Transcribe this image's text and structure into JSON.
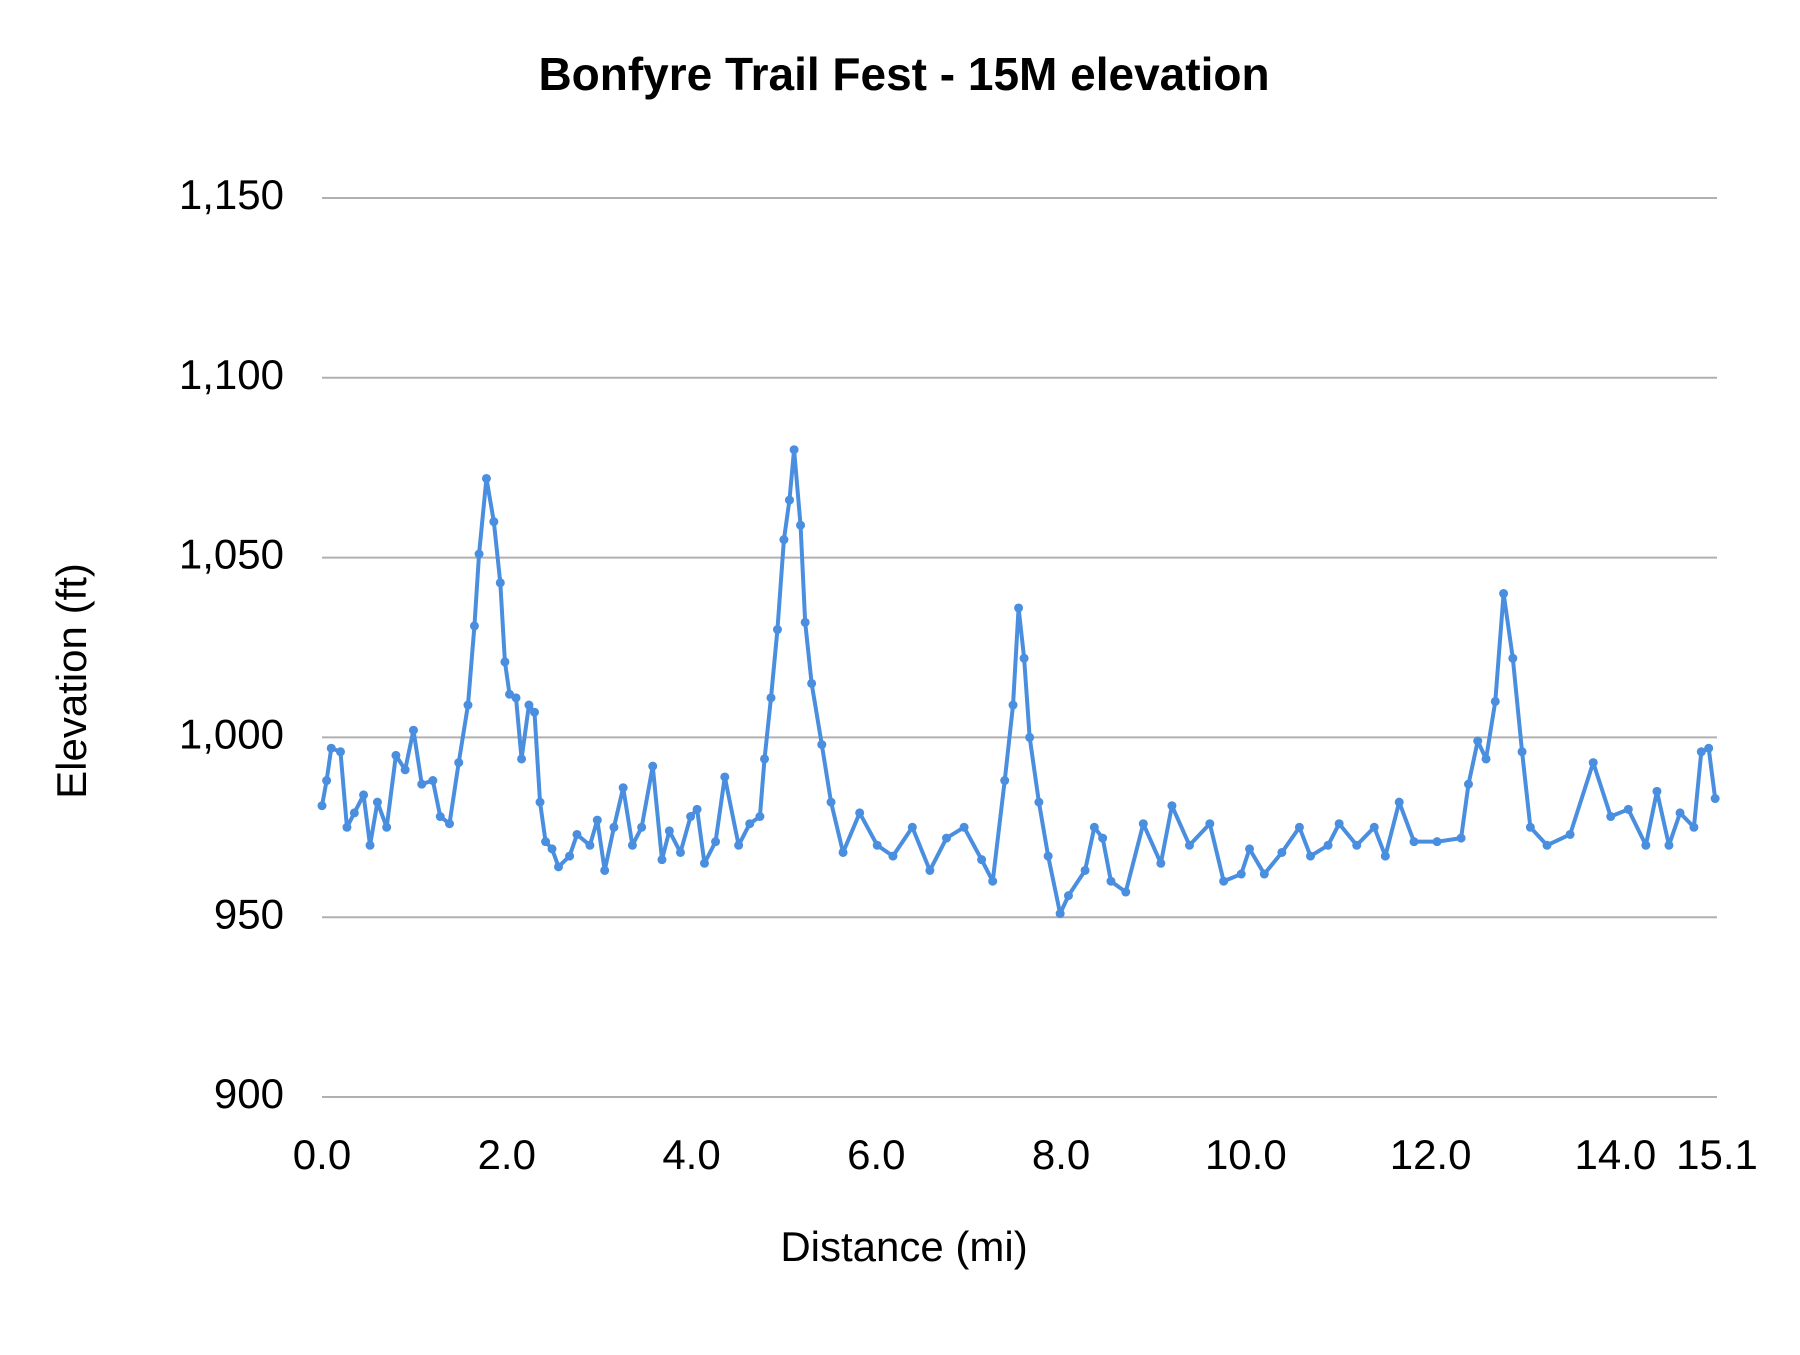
{
  "chart_data": {
    "type": "line",
    "title": "Bonfyre Trail Fest - 15M elevation",
    "x_label": "Distance (mi)",
    "y_label": "Elevation (ft)",
    "color": "#4a8ee0",
    "markers": true,
    "grid": true,
    "xlim": [
      0,
      15.1
    ],
    "ylim": [
      900,
      1150
    ],
    "xticks": [
      {
        "value": 0,
        "label": "0.0"
      },
      {
        "value": 2,
        "label": "2.0"
      },
      {
        "value": 4,
        "label": "4.0"
      },
      {
        "value": 6,
        "label": "6.0"
      },
      {
        "value": 8,
        "label": "8.0"
      },
      {
        "value": 10,
        "label": "10.0"
      },
      {
        "value": 12,
        "label": "12.0"
      },
      {
        "value": 14,
        "label": "14.0"
      },
      15.1
    ],
    "yticks": [
      900,
      950,
      {
        "value": 1000,
        "label": "1,000"
      },
      {
        "value": 1050,
        "label": "1,050"
      },
      {
        "value": 1100,
        "label": "1,100"
      },
      {
        "value": 1150,
        "label": "1,150"
      }
    ],
    "x": [
      0.0,
      0.05,
      0.1,
      0.2,
      0.27,
      0.35,
      0.45,
      0.52,
      0.6,
      0.7,
      0.8,
      0.9,
      0.99,
      1.08,
      1.2,
      1.28,
      1.38,
      1.48,
      1.58,
      1.65,
      1.7,
      1.78,
      1.86,
      1.93,
      1.98,
      2.03,
      2.1,
      2.16,
      2.24,
      2.3,
      2.36,
      2.42,
      2.49,
      2.56,
      2.68,
      2.76,
      2.9,
      2.98,
      3.06,
      3.16,
      3.26,
      3.36,
      3.46,
      3.58,
      3.68,
      3.76,
      3.88,
      3.99,
      4.06,
      4.14,
      4.26,
      4.36,
      4.51,
      4.63,
      4.74,
      4.79,
      4.86,
      4.93,
      5.0,
      5.06,
      5.11,
      5.18,
      5.23,
      5.3,
      5.41,
      5.51,
      5.64,
      5.82,
      6.01,
      6.18,
      6.39,
      6.58,
      6.76,
      6.95,
      7.14,
      7.26,
      7.39,
      7.48,
      7.54,
      7.6,
      7.66,
      7.76,
      7.86,
      7.99,
      8.08,
      8.26,
      8.36,
      8.45,
      8.54,
      8.7,
      8.89,
      9.08,
      9.2,
      9.39,
      9.61,
      9.76,
      9.95,
      10.04,
      10.2,
      10.39,
      10.58,
      10.7,
      10.89,
      11.01,
      11.2,
      11.39,
      11.51,
      11.66,
      11.82,
      12.07,
      12.33,
      12.41,
      12.51,
      12.6,
      12.7,
      12.79,
      12.89,
      12.99,
      13.08,
      13.26,
      13.51,
      13.76,
      13.95,
      14.14,
      14.33,
      14.45,
      14.58,
      14.7,
      14.85,
      14.93,
      15.01,
      15.08
    ],
    "values": [
      981,
      988,
      997,
      996,
      975,
      979,
      984,
      970,
      982,
      975,
      995,
      991,
      1002,
      987,
      988,
      978,
      976,
      993,
      1009,
      1031,
      1051,
      1072,
      1060,
      1043,
      1021,
      1012,
      1011,
      994,
      1009,
      1007,
      982,
      971,
      969,
      964,
      967,
      973,
      970,
      977,
      963,
      975,
      986,
      970,
      975,
      992,
      966,
      974,
      968,
      978,
      980,
      965,
      971,
      989,
      970,
      976,
      978,
      994,
      1011,
      1030,
      1055,
      1066,
      1080,
      1059,
      1032,
      1015,
      998,
      982,
      968,
      979,
      970,
      967,
      975,
      963,
      972,
      975,
      966,
      960,
      988,
      1009,
      1036,
      1022,
      1000,
      982,
      967,
      951,
      956,
      963,
      975,
      972,
      960,
      957,
      976,
      965,
      981,
      970,
      976,
      960,
      962,
      969,
      962,
      968,
      975,
      967,
      970,
      976,
      970,
      975,
      967,
      982,
      971,
      971,
      972,
      987,
      999,
      994,
      1010,
      1040,
      1022,
      996,
      975,
      970,
      973,
      993,
      978,
      980,
      970,
      985,
      970,
      979,
      975,
      996,
      997,
      983
    ]
  }
}
